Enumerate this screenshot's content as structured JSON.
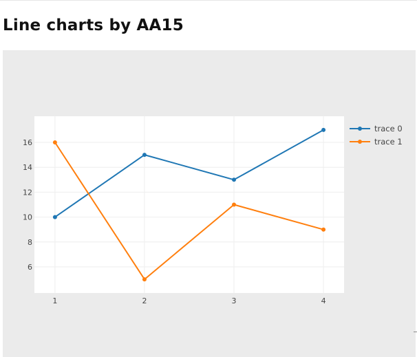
{
  "page": {
    "title": "Line charts by AA15"
  },
  "chart_data": {
    "type": "line",
    "title": "",
    "xlabel": "",
    "ylabel": "",
    "x": [
      1,
      2,
      3,
      4
    ],
    "xticks": [
      1,
      2,
      3,
      4
    ],
    "yticks": [
      6,
      8,
      10,
      12,
      14,
      16
    ],
    "xlim": [
      0.77,
      4.23
    ],
    "ylim": [
      3.9,
      18.1
    ],
    "grid": true,
    "legend": "top-right",
    "series": [
      {
        "name": "trace 0",
        "values": [
          10,
          15,
          13,
          17
        ],
        "color": "#1f77b4"
      },
      {
        "name": "trace 1",
        "values": [
          16,
          5,
          11,
          9
        ],
        "color": "#ff7f0e"
      }
    ]
  }
}
